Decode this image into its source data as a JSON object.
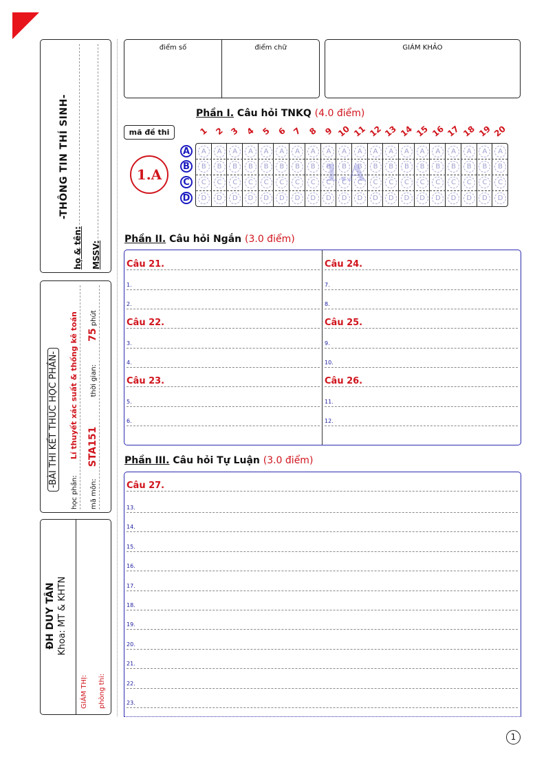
{
  "sidebar": {
    "student_box": {
      "title": "-THÔNG TIN THÍ SINH-",
      "name_label": "họ & tên:",
      "id_label": "MSSV:"
    },
    "exam_box": {
      "title": "-BÀI THI KẾT THÚC HỌC PHẦN-",
      "course_label": "học phần:",
      "course_value": "Lí thuyết xác suất & thống kê toán",
      "code_label": "mã môn:",
      "code_value": "STA151",
      "time_label": "thời gian:",
      "time_value": "75",
      "time_unit": "phút"
    },
    "school_box": {
      "school": "ĐH DUY TÂN",
      "faculty": "Khoa: MT & KHTN",
      "proctor_label": "GIÁM THỊ:",
      "room_label": "phòng thi:"
    }
  },
  "score": {
    "number_label": "điểm số",
    "word_label": "điểm chữ",
    "examiner_label": "GIÁM KHẢO"
  },
  "part1": {
    "title": "Phần I.",
    "subtitle": "Câu hỏi TNKQ",
    "points": "(4.0 điểm)",
    "code_label": "mã đề thi",
    "code": "1.A",
    "watermark": "1.A",
    "numbers": [
      "1",
      "2",
      "3",
      "4",
      "5",
      "6",
      "7",
      "8",
      "9",
      "10",
      "11",
      "12",
      "13",
      "14",
      "15",
      "16",
      "17",
      "18",
      "19",
      "20"
    ],
    "options": [
      "A",
      "B",
      "C",
      "D"
    ]
  },
  "part2": {
    "title": "Phần II.",
    "subtitle": "Câu hỏi Ngắn",
    "points": "(3.0 điểm)",
    "questions": [
      {
        "label": "Câu 21.",
        "lines": [
          "1.",
          "2."
        ]
      },
      {
        "label": "Câu 22.",
        "lines": [
          "3.",
          "4."
        ]
      },
      {
        "label": "Câu 23.",
        "lines": [
          "5.",
          "6."
        ]
      },
      {
        "label": "Câu 24.",
        "lines": [
          "7.",
          "8."
        ]
      },
      {
        "label": "Câu 25.",
        "lines": [
          "9.",
          "10."
        ]
      },
      {
        "label": "Câu 26.",
        "lines": [
          "11.",
          "12."
        ]
      }
    ]
  },
  "part3": {
    "title": "Phần III.",
    "subtitle": "Câu hỏi Tự Luận",
    "points": "(3.0 điểm)",
    "question": "Câu 27.",
    "lines": [
      "13.",
      "14.",
      "15.",
      "16.",
      "17.",
      "18.",
      "19.",
      "20.",
      "21.",
      "22.",
      "23."
    ]
  },
  "page_number": "1",
  "colors": {
    "accent_red": "#d0141c",
    "accent_blue": "#1a1ac0"
  }
}
